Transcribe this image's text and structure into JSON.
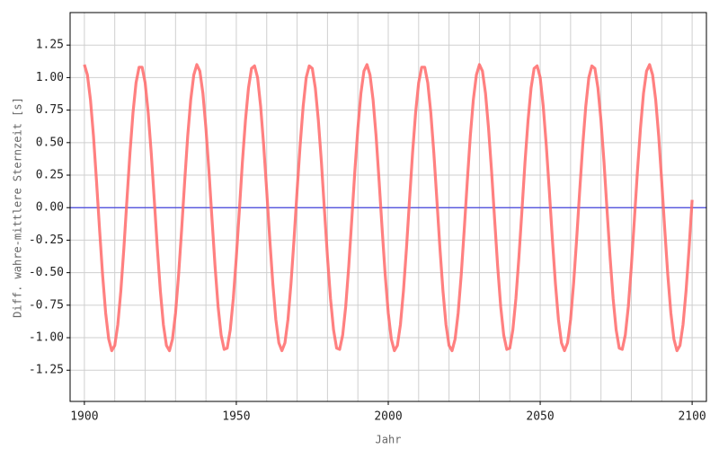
{
  "chart_data": {
    "type": "line",
    "xlabel": "Jahr",
    "ylabel": "Diff. wahre-mittlere Sternzeit [s]",
    "x": [
      1900,
      1901,
      1902,
      1903,
      1904,
      1905,
      1906,
      1907,
      1908,
      1909,
      1910,
      1911,
      1912,
      1913,
      1914,
      1915,
      1916,
      1917,
      1918,
      1919,
      1920,
      1921,
      1922,
      1923,
      1924,
      1925,
      1926,
      1927,
      1928,
      1929,
      1930,
      1931,
      1932,
      1933,
      1934,
      1935,
      1936,
      1937,
      1938,
      1939,
      1940,
      1941,
      1942,
      1943,
      1944,
      1945,
      1946,
      1947,
      1948,
      1949,
      1950,
      1951,
      1952,
      1953,
      1954,
      1955,
      1956,
      1957,
      1958,
      1959,
      1960,
      1961,
      1962,
      1963,
      1964,
      1965,
      1966,
      1967,
      1968,
      1969,
      1970,
      1971,
      1972,
      1973,
      1974,
      1975,
      1976,
      1977,
      1978,
      1979,
      1980,
      1981,
      1982,
      1983,
      1984,
      1985,
      1986,
      1987,
      1988,
      1989,
      1990,
      1991,
      1992,
      1993,
      1994,
      1995,
      1996,
      1997,
      1998,
      1999,
      2000,
      2001,
      2002,
      2003,
      2004,
      2005,
      2006,
      2007,
      2008,
      2009,
      2010,
      2011,
      2012,
      2013,
      2014,
      2015,
      2016,
      2017,
      2018,
      2019,
      2020,
      2021,
      2022,
      2023,
      2024,
      2025,
      2026,
      2027,
      2028,
      2029,
      2030,
      2031,
      2032,
      2033,
      2034,
      2035,
      2036,
      2037,
      2038,
      2039,
      2040,
      2041,
      2042,
      2043,
      2044,
      2045,
      2046,
      2047,
      2048,
      2049,
      2050,
      2051,
      2052,
      2053,
      2054,
      2055,
      2056,
      2057,
      2058,
      2059,
      2060,
      2061,
      2062,
      2063,
      2064,
      2065,
      2066,
      2067,
      2068,
      2069,
      2070,
      2071,
      2072,
      2073,
      2074,
      2075,
      2076,
      2077,
      2078,
      2079,
      2080,
      2081,
      2082,
      2083,
      2084,
      2085,
      2086,
      2087,
      2088,
      2089,
      2090,
      2091,
      2092,
      2093,
      2094,
      2095,
      2096,
      2097,
      2098,
      2099,
      2100
    ],
    "series": [
      {
        "color": "#ff6a6a",
        "values": [
          1.1,
          1.02,
          0.83,
          0.55,
          0.2,
          -0.17,
          -0.52,
          -0.81,
          -1.01,
          -1.1,
          -1.06,
          -0.9,
          -0.64,
          -0.31,
          0.06,
          0.42,
          0.73,
          0.96,
          1.08,
          1.08,
          0.96,
          0.73,
          0.42,
          0.06,
          -0.31,
          -0.64,
          -0.9,
          -1.06,
          -1.1,
          -1.01,
          -0.81,
          -0.52,
          -0.17,
          0.2,
          0.55,
          0.83,
          1.02,
          1.1,
          1.05,
          0.88,
          0.61,
          0.28,
          -0.09,
          -0.45,
          -0.76,
          -0.98,
          -1.09,
          -1.08,
          -0.94,
          -0.7,
          -0.38,
          -0.02,
          0.35,
          0.67,
          0.92,
          1.07,
          1.09,
          1.0,
          0.78,
          0.48,
          0.13,
          -0.24,
          -0.58,
          -0.86,
          -1.04,
          -1.1,
          -1.04,
          -0.86,
          -0.58,
          -0.24,
          0.13,
          0.48,
          0.78,
          1.0,
          1.09,
          1.07,
          0.92,
          0.67,
          0.35,
          -0.02,
          -0.38,
          -0.7,
          -0.94,
          -1.08,
          -1.09,
          -0.98,
          -0.76,
          -0.45,
          -0.09,
          0.28,
          0.61,
          0.88,
          1.05,
          1.1,
          1.02,
          0.83,
          0.55,
          0.2,
          -0.17,
          -0.52,
          -0.81,
          -1.01,
          -1.1,
          -1.06,
          -0.9,
          -0.64,
          -0.31,
          0.06,
          0.42,
          0.73,
          0.96,
          1.08,
          1.08,
          0.96,
          0.73,
          0.42,
          0.06,
          -0.31,
          -0.64,
          -0.9,
          -1.06,
          -1.1,
          -1.01,
          -0.81,
          -0.52,
          -0.17,
          0.2,
          0.55,
          0.83,
          1.02,
          1.1,
          1.05,
          0.88,
          0.61,
          0.28,
          -0.09,
          -0.45,
          -0.76,
          -0.98,
          -1.09,
          -1.08,
          -0.94,
          -0.7,
          -0.38,
          -0.02,
          0.35,
          0.67,
          0.92,
          1.07,
          1.09,
          1.0,
          0.78,
          0.48,
          0.13,
          -0.24,
          -0.58,
          -0.86,
          -1.04,
          -1.1,
          -1.04,
          -0.86,
          -0.58,
          -0.24,
          0.13,
          0.48,
          0.78,
          1.0,
          1.09,
          1.07,
          0.92,
          0.67,
          0.35,
          -0.02,
          -0.38,
          -0.7,
          -0.94,
          -1.08,
          -1.09,
          -0.98,
          -0.76,
          -0.45,
          -0.09,
          0.28,
          0.61,
          0.88,
          1.05,
          1.1,
          1.02,
          0.83,
          0.55,
          0.2,
          -0.17,
          -0.52,
          -0.81,
          -1.01,
          -1.1,
          -1.06,
          -0.9,
          -0.64,
          -0.31,
          0.06
        ]
      }
    ],
    "hline": {
      "value": 0,
      "color": "#4444dd"
    },
    "xlim": [
      1895.3,
      2104.7
    ],
    "ylim": [
      -1.49,
      1.5
    ],
    "xticks": [
      1900,
      1950,
      2000,
      2050,
      2100
    ],
    "x_minor_ticks": [
      1900,
      1910,
      1920,
      1930,
      1940,
      1950,
      1960,
      1970,
      1980,
      1990,
      2000,
      2010,
      2020,
      2030,
      2040,
      2050,
      2060,
      2070,
      2080,
      2090,
      2100
    ],
    "yticks": [
      -1.25,
      {
        "value": -1,
        "label": "-1.00"
      },
      -0.75,
      {
        "value": -0.5,
        "label": "-0.50"
      },
      -0.25,
      {
        "value": 0,
        "label": "0.00"
      },
      0.25,
      {
        "value": 0.5,
        "label": "0.50"
      },
      0.75,
      {
        "value": 1,
        "label": "1.00"
      },
      1.25
    ],
    "grid": true
  }
}
